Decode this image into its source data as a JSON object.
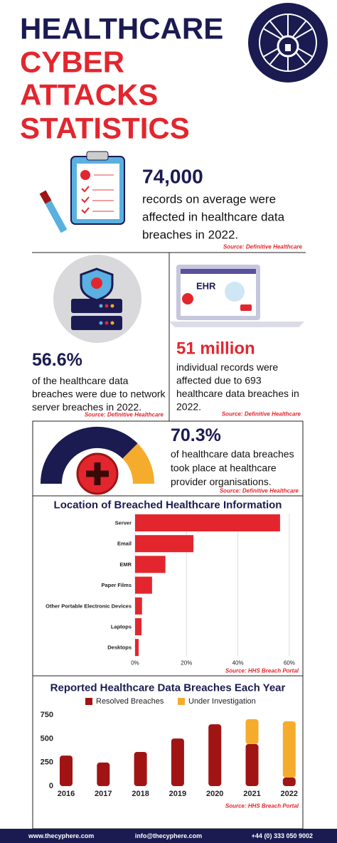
{
  "title": [
    "HEALTHCARE",
    "CYBER",
    "ATTACKS",
    "STATISTICS"
  ],
  "stats": [
    {
      "value": "74,000",
      "text": [
        "records on average were",
        "affected in healthcare data",
        "breaches in 2022."
      ],
      "source": "Source: Definitive Healthcare"
    },
    {
      "value": "56.6%",
      "text": [
        " of the healthcare data",
        "breaches were due to network",
        "server breaches in 2022."
      ],
      "source": "Source: Definitive Healthcare"
    },
    {
      "value": "51 million",
      "text": [
        "individual records were",
        "affected due to 693",
        "healthcare data breaches in",
        "2022."
      ],
      "source": "Source: Definitive Healthcare"
    },
    {
      "value": "70.3%",
      "text": [
        "of healthcare data breaches",
        "took place at healthcare",
        "provider organisations."
      ],
      "source": "Source: Definitive Healthcare"
    }
  ],
  "icon_label": "EHR",
  "chart_data": [
    {
      "type": "hbar",
      "title": "Location of Breached Healthcare Information",
      "categories": [
        "Server",
        "Email",
        "EMR",
        "Paper Films",
        "Other Portable Electronic Devices",
        "Laptops",
        "Desktops"
      ],
      "values": [
        56.4,
        22.7,
        11.8,
        6.6,
        2.7,
        2.5,
        1.4
      ],
      "color": "#e3262e",
      "xlim": [
        0,
        65
      ],
      "xticks": [
        {
          "value": 0,
          "label": "0%"
        },
        {
          "value": 20,
          "label": "20%"
        },
        {
          "value": 40,
          "label": "40%"
        },
        {
          "value": 60,
          "label": "60%"
        }
      ],
      "grid": true,
      "source": "Source: HHS Breach Portal"
    },
    {
      "type": "stacked_bar",
      "title": "Reported Healthcare Data Breaches Each Year",
      "categories": [
        "2016",
        "2017",
        "2018",
        "2019",
        "2020",
        "2021",
        "2022"
      ],
      "series": [
        {
          "name": "Resolved Breaches",
          "color": "#a01414",
          "values": [
            322,
            248,
            360,
            502,
            652,
            443,
            90
          ]
        },
        {
          "name": "Under Investigation",
          "color": "#f5ac2c",
          "values": [
            null,
            null,
            null,
            null,
            null,
            262,
            593
          ]
        }
      ],
      "ylim": [
        0,
        750
      ],
      "yticks": [
        0,
        250,
        500,
        750
      ],
      "grid": false,
      "source": "Source: HHS Breach Portal"
    }
  ],
  "footer": [
    "www.thecyphere.com",
    "info@thecyphere.com",
    "+44 (0) 333 050 9002"
  ]
}
